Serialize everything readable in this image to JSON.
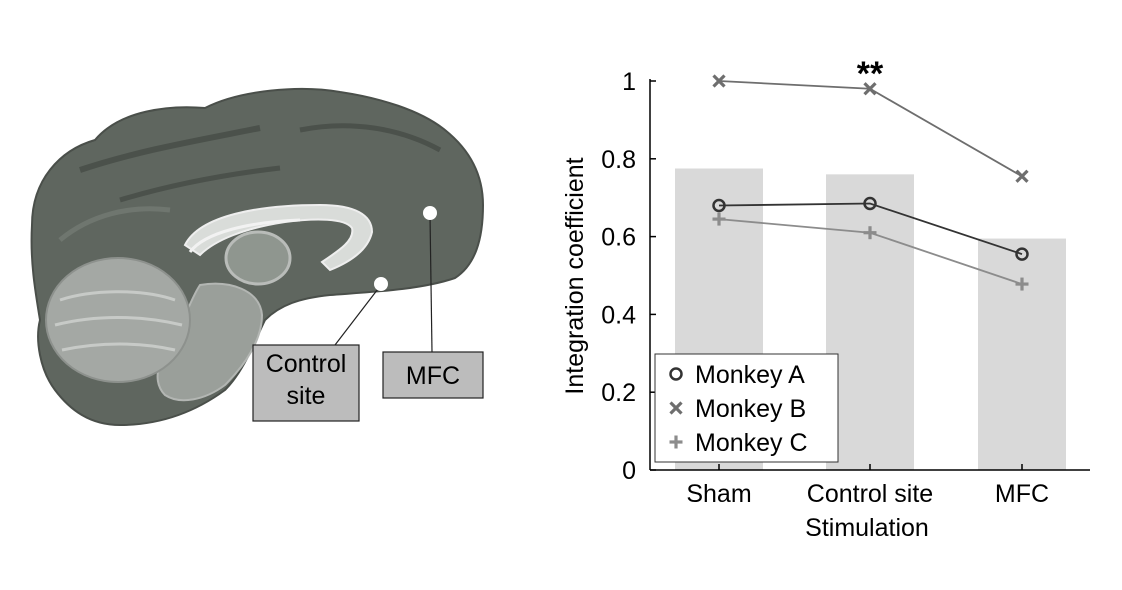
{
  "figure": {
    "brain_labels": {
      "control_site_line1": "Control",
      "control_site_line2": "site",
      "mfc": "MFC"
    },
    "brain_colors": {
      "cortex": "#606660",
      "white_matter": "#bfc2bf",
      "label_box": "#bcbcbc"
    }
  },
  "chart_data": {
    "type": "bar",
    "categories": [
      "Sham",
      "Control site",
      "MFC"
    ],
    "values": [
      0.775,
      0.76,
      0.595
    ],
    "bar_color": "#d9d9d9",
    "ylim": [
      0,
      1
    ],
    "yticks": [
      "0",
      "0.2",
      "0.4",
      "0.6",
      "0.8",
      "1"
    ],
    "ylabel": "Integration coefficient",
    "xlabel": "Stimulation",
    "significance": {
      "category": "Control site",
      "label": "**"
    },
    "legend_position": "bottom-left",
    "series": [
      {
        "name": "Monkey A",
        "marker": "circle",
        "color": "#333333",
        "values": [
          0.68,
          0.685,
          0.555
        ]
      },
      {
        "name": "Monkey B",
        "marker": "x",
        "color": "#6e6e6e",
        "values": [
          1.0,
          0.98,
          0.755
        ]
      },
      {
        "name": "Monkey C",
        "marker": "plus",
        "color": "#8c8c8c",
        "values": [
          0.645,
          0.61,
          0.478
        ]
      }
    ]
  }
}
